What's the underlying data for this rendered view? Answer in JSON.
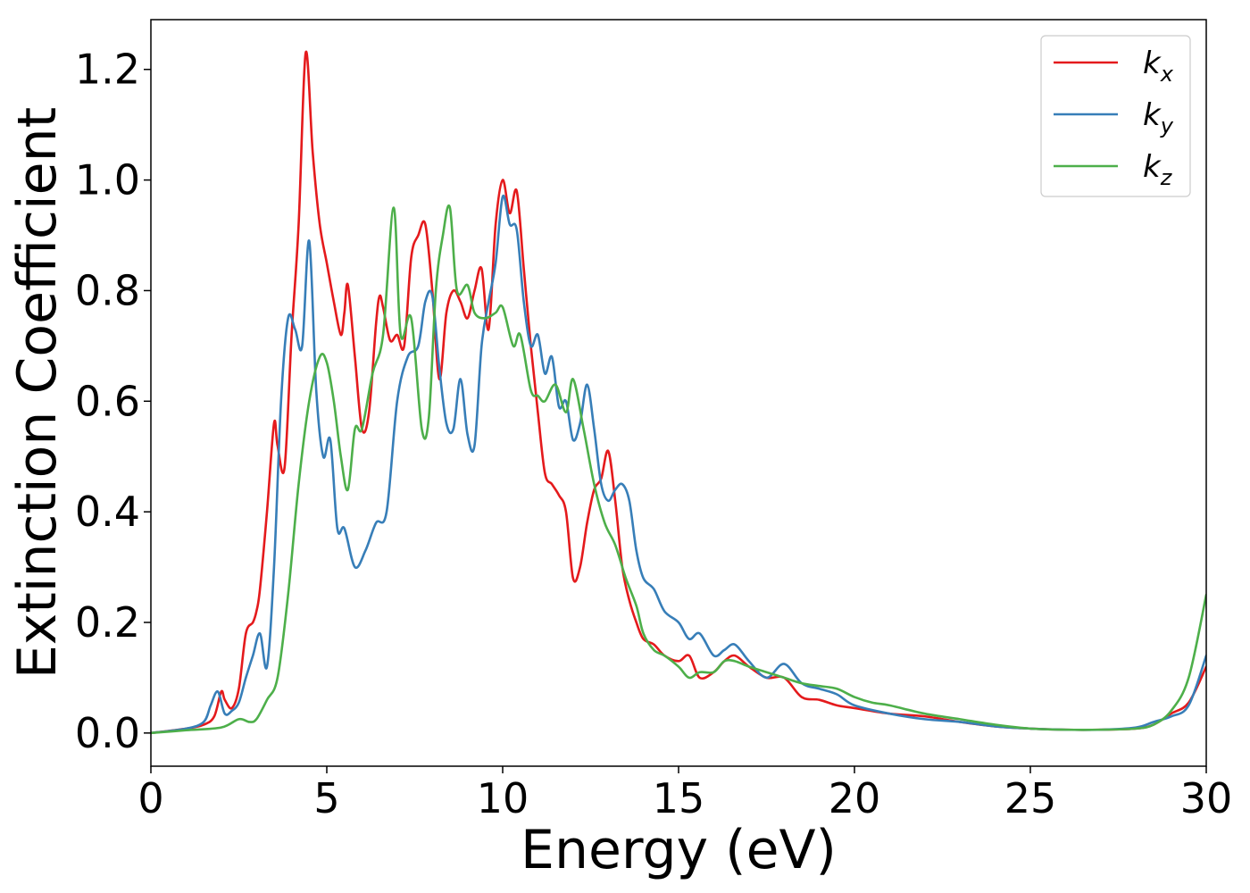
{
  "chart_data": {
    "type": "line",
    "title": "",
    "xlabel": "Energy (eV)",
    "ylabel": "Extinction Coefficient",
    "xlim": [
      0,
      30
    ],
    "ylim": [
      -0.06,
      1.29
    ],
    "xticks": [
      0,
      5,
      10,
      15,
      20,
      25,
      30
    ],
    "yticks": [
      0.0,
      0.2,
      0.4,
      0.6,
      0.8,
      1.0,
      1.2
    ],
    "xtick_labels": [
      "0",
      "5",
      "10",
      "15",
      "20",
      "25",
      "30"
    ],
    "ytick_labels": [
      "0.0",
      "0.2",
      "0.4",
      "0.6",
      "0.8",
      "1.0",
      "1.2"
    ],
    "grid": false,
    "legend_position": "top-right",
    "series": [
      {
        "name": "k_x",
        "label_base": "k",
        "label_sub": "x",
        "color": "#e41a1c",
        "x": [
          0,
          1,
          1.5,
          1.8,
          2.0,
          2.1,
          2.3,
          2.5,
          2.7,
          2.9,
          3.0,
          3.1,
          3.3,
          3.5,
          3.6,
          3.8,
          4.0,
          4.2,
          4.4,
          4.6,
          4.8,
          5.0,
          5.2,
          5.4,
          5.5,
          5.6,
          5.8,
          6.0,
          6.2,
          6.4,
          6.5,
          6.6,
          6.8,
          7.0,
          7.2,
          7.4,
          7.6,
          7.8,
          8.0,
          8.2,
          8.4,
          8.6,
          8.8,
          9.0,
          9.2,
          9.4,
          9.6,
          9.8,
          10.0,
          10.2,
          10.4,
          10.6,
          10.8,
          11.0,
          11.2,
          11.4,
          11.6,
          11.8,
          12.0,
          12.2,
          12.4,
          12.6,
          12.8,
          13.0,
          13.2,
          13.4,
          13.6,
          13.8,
          14.0,
          14.3,
          14.6,
          15.0,
          15.3,
          15.6,
          16.0,
          16.3,
          16.6,
          17.0,
          17.5,
          18.0,
          18.5,
          19.0,
          19.5,
          20.0,
          21.0,
          22.0,
          23.0,
          24.0,
          25.0,
          26.0,
          27.0,
          28.0,
          28.5,
          29.0,
          29.5,
          30.0
        ],
        "y": [
          0,
          0.008,
          0.015,
          0.03,
          0.075,
          0.06,
          0.045,
          0.08,
          0.18,
          0.2,
          0.22,
          0.26,
          0.4,
          0.56,
          0.52,
          0.48,
          0.72,
          0.92,
          1.23,
          1.05,
          0.92,
          0.85,
          0.78,
          0.72,
          0.76,
          0.81,
          0.68,
          0.55,
          0.58,
          0.74,
          0.79,
          0.77,
          0.71,
          0.72,
          0.7,
          0.86,
          0.9,
          0.92,
          0.8,
          0.64,
          0.76,
          0.8,
          0.78,
          0.75,
          0.8,
          0.84,
          0.73,
          0.92,
          1.0,
          0.94,
          0.98,
          0.84,
          0.7,
          0.58,
          0.47,
          0.45,
          0.43,
          0.4,
          0.28,
          0.3,
          0.38,
          0.44,
          0.46,
          0.51,
          0.42,
          0.3,
          0.24,
          0.2,
          0.17,
          0.16,
          0.14,
          0.13,
          0.14,
          0.1,
          0.11,
          0.13,
          0.14,
          0.12,
          0.1,
          0.1,
          0.065,
          0.06,
          0.05,
          0.045,
          0.035,
          0.03,
          0.02,
          0.012,
          0.008,
          0.006,
          0.006,
          0.008,
          0.015,
          0.035,
          0.055,
          0.12
        ]
      },
      {
        "name": "k_y",
        "label_base": "k",
        "label_sub": "y",
        "color": "#377eb8",
        "x": [
          0,
          1,
          1.5,
          1.7,
          1.9,
          2.1,
          2.3,
          2.5,
          2.7,
          2.9,
          3.1,
          3.3,
          3.5,
          3.7,
          3.9,
          4.1,
          4.3,
          4.5,
          4.7,
          4.9,
          5.1,
          5.3,
          5.5,
          5.8,
          6.1,
          6.4,
          6.7,
          7.0,
          7.3,
          7.6,
          7.8,
          8.0,
          8.2,
          8.4,
          8.6,
          8.8,
          9.0,
          9.2,
          9.4,
          9.6,
          9.8,
          10.0,
          10.2,
          10.4,
          10.6,
          10.8,
          11.0,
          11.2,
          11.4,
          11.6,
          11.8,
          12.0,
          12.2,
          12.4,
          12.6,
          12.8,
          13.0,
          13.2,
          13.4,
          13.6,
          13.8,
          14.0,
          14.3,
          14.6,
          15.0,
          15.3,
          15.6,
          16.0,
          16.3,
          16.6,
          17.0,
          17.5,
          18.0,
          18.5,
          19.0,
          19.5,
          20.0,
          21.0,
          22.0,
          23.0,
          24.0,
          25.0,
          26.0,
          27.0,
          28.0,
          28.5,
          29.0,
          29.5,
          30.0
        ],
        "y": [
          0,
          0.008,
          0.02,
          0.05,
          0.075,
          0.035,
          0.04,
          0.055,
          0.1,
          0.14,
          0.18,
          0.12,
          0.3,
          0.6,
          0.75,
          0.73,
          0.7,
          0.89,
          0.62,
          0.5,
          0.53,
          0.37,
          0.37,
          0.3,
          0.33,
          0.38,
          0.4,
          0.6,
          0.68,
          0.7,
          0.78,
          0.79,
          0.66,
          0.56,
          0.55,
          0.64,
          0.54,
          0.52,
          0.7,
          0.78,
          0.85,
          0.97,
          0.92,
          0.91,
          0.78,
          0.7,
          0.72,
          0.65,
          0.68,
          0.59,
          0.6,
          0.53,
          0.56,
          0.63,
          0.55,
          0.45,
          0.42,
          0.44,
          0.45,
          0.42,
          0.33,
          0.28,
          0.26,
          0.22,
          0.2,
          0.17,
          0.18,
          0.14,
          0.15,
          0.16,
          0.13,
          0.1,
          0.125,
          0.09,
          0.08,
          0.07,
          0.05,
          0.035,
          0.025,
          0.02,
          0.012,
          0.008,
          0.006,
          0.006,
          0.01,
          0.02,
          0.03,
          0.05,
          0.14
        ]
      },
      {
        "name": "k_z",
        "label_base": "k",
        "label_sub": "z",
        "color": "#4daf4a",
        "x": [
          0,
          1,
          2,
          2.5,
          2.8,
          3.0,
          3.3,
          3.6,
          3.9,
          4.2,
          4.5,
          4.8,
          5.0,
          5.2,
          5.4,
          5.6,
          5.8,
          6.0,
          6.3,
          6.6,
          6.9,
          7.1,
          7.4,
          7.7,
          7.9,
          8.1,
          8.3,
          8.5,
          8.7,
          9.0,
          9.2,
          9.5,
          9.8,
          10.0,
          10.3,
          10.5,
          10.8,
          11.0,
          11.2,
          11.5,
          11.8,
          12.0,
          12.3,
          12.6,
          12.9,
          13.2,
          13.5,
          13.8,
          14.0,
          14.3,
          14.6,
          15.0,
          15.3,
          15.6,
          16.0,
          16.3,
          16.6,
          17.0,
          17.5,
          18.0,
          18.5,
          19.0,
          19.5,
          20.0,
          20.5,
          21.0,
          22.0,
          23.0,
          24.0,
          25.0,
          26.0,
          27.0,
          28.0,
          28.5,
          29.0,
          29.5,
          30.0
        ],
        "y": [
          0,
          0.005,
          0.01,
          0.025,
          0.02,
          0.025,
          0.06,
          0.1,
          0.25,
          0.45,
          0.6,
          0.68,
          0.67,
          0.6,
          0.5,
          0.44,
          0.55,
          0.55,
          0.65,
          0.72,
          0.95,
          0.72,
          0.75,
          0.55,
          0.57,
          0.8,
          0.9,
          0.95,
          0.8,
          0.81,
          0.76,
          0.75,
          0.76,
          0.77,
          0.7,
          0.72,
          0.62,
          0.61,
          0.6,
          0.63,
          0.58,
          0.64,
          0.55,
          0.45,
          0.38,
          0.34,
          0.28,
          0.23,
          0.18,
          0.15,
          0.14,
          0.12,
          0.1,
          0.11,
          0.11,
          0.13,
          0.13,
          0.12,
          0.11,
          0.1,
          0.09,
          0.085,
          0.08,
          0.065,
          0.055,
          0.05,
          0.035,
          0.025,
          0.015,
          0.008,
          0.006,
          0.006,
          0.008,
          0.015,
          0.04,
          0.1,
          0.25
        ]
      }
    ]
  }
}
